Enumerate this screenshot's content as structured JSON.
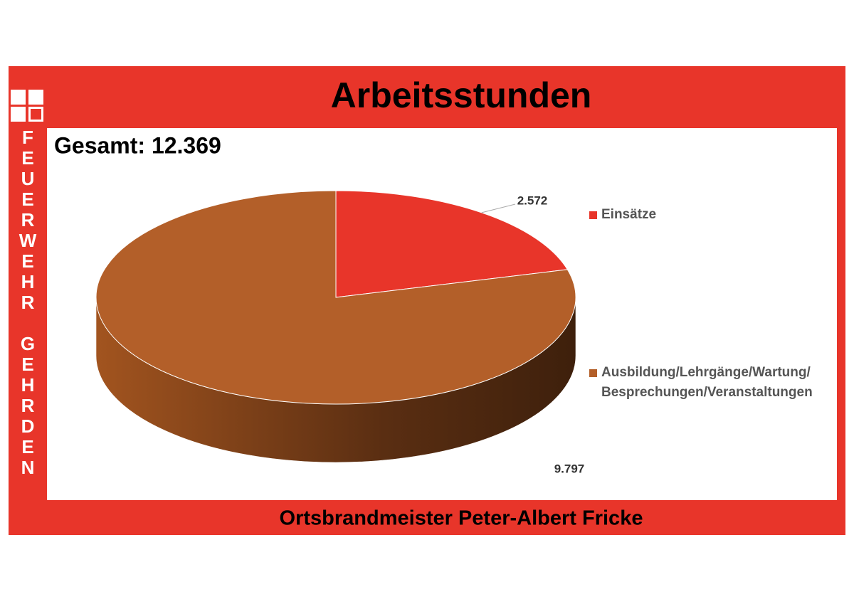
{
  "side_text": "FEUERWEHR GEHRDEN",
  "footer": "Ortsbrandmeister Peter-Albert Fricke",
  "chart_data": {
    "type": "pie",
    "title": "Arbeitsstunden",
    "subtitle": "Gesamt: 12.369",
    "categories": [
      "Einsätze",
      "Ausbildung/Lehrgänge/Wartung/ Besprechungen/Veranstaltungen"
    ],
    "values": [
      2572,
      9797
    ],
    "value_labels": [
      "2.572",
      "9.797"
    ],
    "colors": [
      "#e8352a",
      "#b35f29"
    ],
    "legend": "right"
  }
}
